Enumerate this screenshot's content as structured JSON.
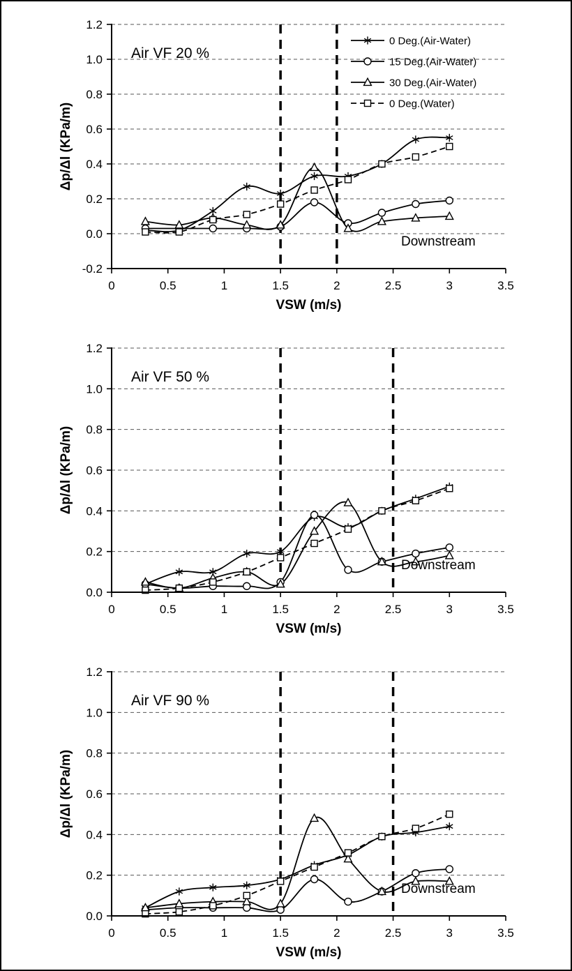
{
  "figure": {
    "background": "#ffffff",
    "frame_color": "#000000",
    "line_color": "#000000",
    "grid_color": "#555555"
  },
  "chart_data": [
    {
      "type": "line",
      "title": "Air VF 20 %",
      "xlabel": "VSW (m/s)",
      "ylabel": "Δp/Δl (KPa/m)",
      "annotation": "Downstream",
      "xlim": [
        0,
        3.5
      ],
      "ylim": [
        -0.2,
        1.2
      ],
      "xticks": [
        0,
        0.5,
        1,
        1.5,
        2,
        2.5,
        3,
        3.5
      ],
      "xtick_labels": [
        "0",
        "0.5",
        "1",
        "1.5",
        "2",
        "2.5",
        "3",
        "3.5"
      ],
      "yticks": [
        -0.2,
        0,
        0.2,
        0.4,
        0.6,
        0.8,
        1.0,
        1.2
      ],
      "ytick_labels": [
        "-0.2",
        "0.0",
        "0.2",
        "0.4",
        "0.6",
        "0.8",
        "1.0",
        "1.2"
      ],
      "grid": "horizontal-dashed",
      "vlines": [
        1.5,
        2.0
      ],
      "legend": {
        "visible": true,
        "position": "top-right"
      },
      "x": [
        0.3,
        0.6,
        0.9,
        1.2,
        1.5,
        1.8,
        2.1,
        2.4,
        2.7,
        3.0
      ],
      "series": [
        {
          "name": "0 Deg.(Air-Water)",
          "marker": "asterisk",
          "line": "solid",
          "values": [
            0.02,
            0.02,
            0.13,
            0.27,
            0.23,
            0.33,
            0.33,
            0.4,
            0.54,
            0.55
          ]
        },
        {
          "name": "15 Deg.(Air-Water)",
          "marker": "circle",
          "line": "solid",
          "values": [
            0.03,
            0.03,
            0.03,
            0.03,
            0.04,
            0.18,
            0.06,
            0.12,
            0.17,
            0.19
          ]
        },
        {
          "name": "30 Deg.(Air-Water)",
          "marker": "triangle",
          "line": "solid",
          "values": [
            0.07,
            0.05,
            0.09,
            0.05,
            0.05,
            0.38,
            0.03,
            0.07,
            0.09,
            0.1
          ]
        },
        {
          "name": "0 Deg.(Water)",
          "marker": "square",
          "line": "dashed",
          "values": [
            0.01,
            0.01,
            0.08,
            0.11,
            0.17,
            0.25,
            0.31,
            0.4,
            0.44,
            0.5
          ]
        }
      ]
    },
    {
      "type": "line",
      "title": "Air VF 50 %",
      "xlabel": "VSW (m/s)",
      "ylabel": "Δp/Δl (KPa/m)",
      "annotation": "Downstream",
      "xlim": [
        0,
        3.5
      ],
      "ylim": [
        0,
        1.2
      ],
      "xticks": [
        0,
        0.5,
        1,
        1.5,
        2,
        2.5,
        3,
        3.5
      ],
      "xtick_labels": [
        "0",
        "0.5",
        "1",
        "1.5",
        "2",
        "2.5",
        "3",
        "3.5"
      ],
      "yticks": [
        0,
        0.2,
        0.4,
        0.6,
        0.8,
        1.0,
        1.2
      ],
      "ytick_labels": [
        "0.0",
        "0.2",
        "0.4",
        "0.6",
        "0.8",
        "1.0",
        "1.2"
      ],
      "grid": "horizontal-dashed",
      "vlines": [
        1.5,
        2.5
      ],
      "legend": {
        "visible": false,
        "position": "top-right"
      },
      "x": [
        0.3,
        0.6,
        0.9,
        1.2,
        1.5,
        1.8,
        2.1,
        2.4,
        2.7,
        3.0
      ],
      "series": [
        {
          "name": "0 Deg.(Air-Water)",
          "marker": "asterisk",
          "line": "solid",
          "values": [
            0.04,
            0.1,
            0.1,
            0.19,
            0.2,
            0.37,
            0.32,
            0.4,
            0.46,
            0.52
          ]
        },
        {
          "name": "15 Deg.(Air-Water)",
          "marker": "circle",
          "line": "solid",
          "values": [
            0.04,
            0.02,
            0.03,
            0.03,
            0.05,
            0.38,
            0.11,
            0.15,
            0.19,
            0.22
          ]
        },
        {
          "name": "30 Deg.(Air-Water)",
          "marker": "triangle",
          "line": "solid",
          "values": [
            0.05,
            0.02,
            0.07,
            0.1,
            0.04,
            0.3,
            0.44,
            0.15,
            0.15,
            0.18
          ]
        },
        {
          "name": "0 Deg.(Water)",
          "marker": "square",
          "line": "dashed",
          "values": [
            0.01,
            0.02,
            0.05,
            0.1,
            0.17,
            0.24,
            0.31,
            0.4,
            0.45,
            0.51
          ]
        }
      ]
    },
    {
      "type": "line",
      "title": "Air VF 90 %",
      "xlabel": "VSW (m/s)",
      "ylabel": "Δp/Δl (KPa/m)",
      "annotation": "Downstream",
      "xlim": [
        0,
        3.5
      ],
      "ylim": [
        0,
        1.2
      ],
      "xticks": [
        0,
        0.5,
        1,
        1.5,
        2,
        2.5,
        3,
        3.5
      ],
      "xtick_labels": [
        "0",
        "0.5",
        "1",
        "1.5",
        "2",
        "2.5",
        "3",
        "3.5"
      ],
      "yticks": [
        0,
        0.2,
        0.4,
        0.6,
        0.8,
        1.0,
        1.2
      ],
      "ytick_labels": [
        "0.0",
        "0.2",
        "0.4",
        "0.6",
        "0.8",
        "1.0",
        "1.2"
      ],
      "grid": "horizontal-dashed",
      "vlines": [
        1.5,
        2.5
      ],
      "legend": {
        "visible": false,
        "position": "top-right"
      },
      "x": [
        0.3,
        0.6,
        0.9,
        1.2,
        1.5,
        1.8,
        2.1,
        2.4,
        2.7,
        3.0
      ],
      "series": [
        {
          "name": "0 Deg.(Air-Water)",
          "marker": "asterisk",
          "line": "solid",
          "values": [
            0.04,
            0.12,
            0.14,
            0.15,
            0.18,
            0.25,
            0.3,
            0.39,
            0.41,
            0.44
          ]
        },
        {
          "name": "15 Deg.(Air-Water)",
          "marker": "circle",
          "line": "solid",
          "values": [
            0.03,
            0.04,
            0.04,
            0.04,
            0.03,
            0.18,
            0.07,
            0.12,
            0.21,
            0.23
          ]
        },
        {
          "name": "30 Deg.(Air-Water)",
          "marker": "triangle",
          "line": "solid",
          "values": [
            0.04,
            0.06,
            0.07,
            0.07,
            0.06,
            0.48,
            0.28,
            0.12,
            0.17,
            0.17
          ]
        },
        {
          "name": "0 Deg.(Water)",
          "marker": "square",
          "line": "dashed",
          "values": [
            0.01,
            0.02,
            0.05,
            0.1,
            0.17,
            0.24,
            0.31,
            0.39,
            0.43,
            0.5
          ]
        }
      ]
    }
  ]
}
